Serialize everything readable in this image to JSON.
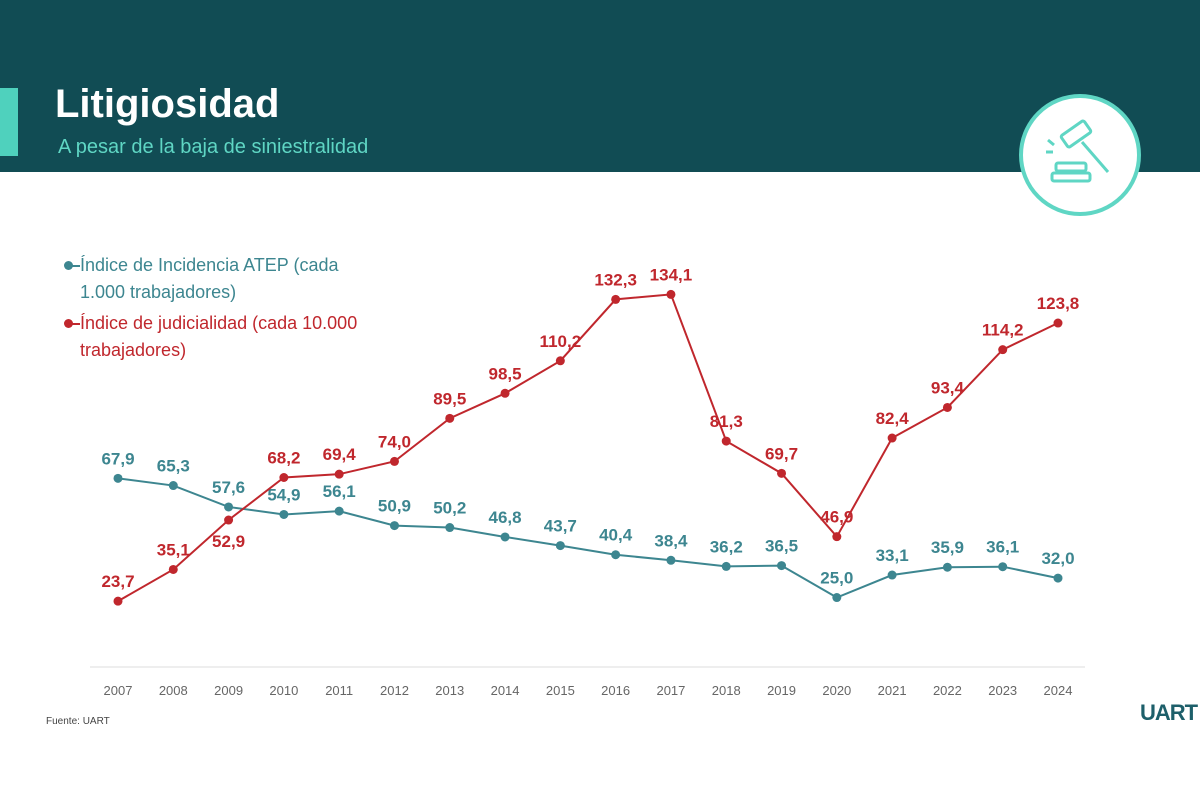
{
  "chart_data": {
    "type": "line",
    "title": "Litigiosidad",
    "subtitle": "A pesar de la baja de siniestralidad",
    "source": "Fuente: UART",
    "logo": "UART",
    "categories": [
      "2007",
      "2008",
      "2009",
      "2010",
      "2011",
      "2012",
      "2013",
      "2014",
      "2015",
      "2016",
      "2017",
      "2018",
      "2019",
      "2020",
      "2021",
      "2022",
      "2023",
      "2024"
    ],
    "ylim": [
      0,
      140
    ],
    "series": [
      {
        "name": "Índice de Incidencia ATEP (cada 1.000 trabajadores)",
        "color": "#3d8690",
        "values": [
          67.9,
          65.3,
          57.6,
          54.9,
          56.1,
          50.9,
          50.2,
          46.8,
          43.7,
          40.4,
          38.4,
          36.2,
          36.5,
          25.0,
          33.1,
          35.9,
          36.1,
          32.0
        ],
        "value_labels": [
          "67,9",
          "65,3",
          "57,6",
          "54,9",
          "56,1",
          "50,9",
          "50,2",
          "46,8",
          "43,7",
          "40,4",
          "38,4",
          "36,2",
          "36,5",
          "25,0",
          "33,1",
          "35,9",
          "36,1",
          "32,0"
        ]
      },
      {
        "name": "Índice de judicialidad (cada 10.000 trabajadores)",
        "color": "#c0272d",
        "values": [
          23.7,
          35.1,
          52.9,
          68.2,
          69.4,
          74.0,
          89.5,
          98.5,
          110.2,
          132.3,
          134.1,
          81.3,
          69.7,
          46.9,
          82.4,
          93.4,
          114.2,
          123.8
        ],
        "value_labels": [
          "23,7",
          "35,1",
          "52,9",
          "68,2",
          "69,4",
          "74,0",
          "89,5",
          "98,5",
          "110,2",
          "132,3",
          "134,1",
          "81,3",
          "69,7",
          "46,9",
          "82,4",
          "93,4",
          "114,2",
          "123,8"
        ]
      }
    ]
  }
}
